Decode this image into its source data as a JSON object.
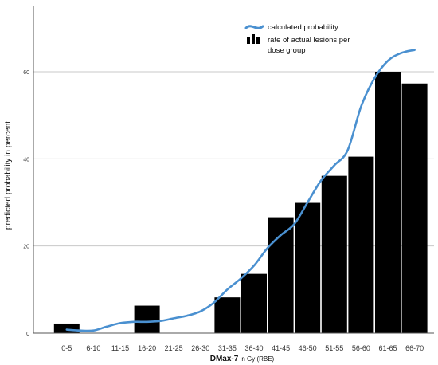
{
  "chart_data": {
    "type": "bar",
    "title": "",
    "xlabel_bold": "DMax-7",
    "xlabel_rest": " in Gy (RBE)",
    "ylabel": "predicted probability in percent",
    "ylim": [
      0,
      75
    ],
    "yticks": [
      0,
      20,
      40,
      60
    ],
    "grid": true,
    "legend_position": "top-right",
    "categories": [
      "0-5",
      "6-10",
      "11-15",
      "16-20",
      "21-25",
      "26-30",
      "31-35",
      "36-40",
      "41-45",
      "46-50",
      "51-55",
      "56-60",
      "61-65",
      "66-70"
    ],
    "series": [
      {
        "name": "rate of actual lesions per dose group",
        "type": "bar",
        "values": [
          2.2,
          0,
          0,
          6.3,
          0,
          0,
          8.2,
          13.6,
          26.6,
          29.9,
          36.1,
          40.5,
          60.0,
          57.3
        ]
      },
      {
        "name": "calculated probability",
        "type": "line",
        "x": [
          0,
          0.5,
          1,
          1.5,
          2,
          2.5,
          3,
          3.5,
          4,
          4.5,
          5,
          5.5,
          6,
          6.5,
          7,
          7.5,
          8,
          8.5,
          9,
          9.5,
          10,
          10.5,
          11,
          11.5,
          12,
          12.5,
          13
        ],
        "values": [
          0.8,
          0.6,
          0.6,
          1.5,
          2.3,
          2.6,
          2.6,
          2.8,
          3.4,
          4.0,
          5.0,
          7.0,
          10.0,
          12.5,
          15.5,
          19.5,
          22.5,
          25.0,
          30.0,
          35.0,
          38.5,
          42.0,
          52.0,
          58.5,
          62.5,
          64.3,
          65.0
        ]
      }
    ]
  },
  "legend": {
    "line_label": "calculated probability",
    "bar_label_line1": "rate of actual lesions per",
    "bar_label_line2": "dose group"
  },
  "colors": {
    "bar": "#000000",
    "line": "#4A90D0",
    "grid": "#c8c8c8",
    "axis": "#555555"
  }
}
